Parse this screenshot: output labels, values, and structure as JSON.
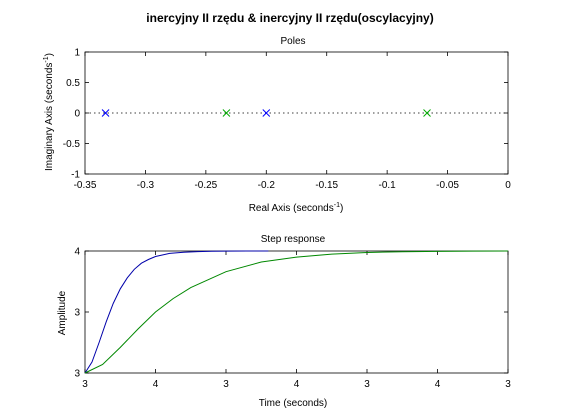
{
  "figure": {
    "title": "inercyjny II rzędu & inercyjny II rzędu(oscylacyjny)"
  },
  "chart_data": [
    {
      "type": "scatter",
      "title": "Poles",
      "xlabel_main": "Real Axis (seconds",
      "xlabel_exp": "-1",
      "xlabel_close": ")",
      "ylabel_main": "Imaginary Axis (seconds",
      "ylabel_exp": "-1",
      "ylabel_close": ")",
      "xlim": [
        -0.35,
        0
      ],
      "ylim": [
        -1,
        1
      ],
      "xticks": [
        "-0.35",
        "-0.3",
        "-0.25",
        "-0.2",
        "-0.15",
        "-0.1",
        "-0.05",
        "0"
      ],
      "yticks": [
        "-1",
        "-0.5",
        "0",
        "0.5",
        "1"
      ],
      "series": [
        {
          "color": "#0000ff",
          "x": [
            -0.333,
            -0.2
          ],
          "y": [
            0,
            0
          ]
        },
        {
          "color": "#00aa00",
          "x": [
            -0.233,
            -0.067
          ],
          "y": [
            0,
            0
          ]
        }
      ]
    },
    {
      "type": "line",
      "title": "Step response",
      "xlabel": "Time (seconds)",
      "ylabel": "Amplitude",
      "xlim": [
        0,
        6
      ],
      "ylim": [
        0,
        1
      ],
      "xticks": [
        "3",
        "4",
        "3",
        "4",
        "3",
        "4",
        "3"
      ],
      "yticks": [
        "3",
        "3",
        "4"
      ],
      "series": [
        {
          "color": "#0000aa",
          "x": [
            0,
            0.1,
            0.2,
            0.3,
            0.4,
            0.5,
            0.6,
            0.7,
            0.8,
            0.9,
            1.0,
            1.2,
            1.4,
            1.6,
            1.8,
            2.0,
            2.3,
            2.6
          ],
          "y": [
            0,
            0.09,
            0.25,
            0.42,
            0.57,
            0.69,
            0.78,
            0.85,
            0.9,
            0.93,
            0.955,
            0.98,
            0.99,
            0.995,
            0.998,
            0.999,
            1.0,
            1.0
          ]
        },
        {
          "color": "#008800",
          "x": [
            0,
            0.25,
            0.5,
            0.75,
            1.0,
            1.25,
            1.5,
            2.0,
            2.5,
            3.0,
            3.5,
            4.0,
            4.5,
            5.0,
            5.5,
            6.0
          ],
          "y": [
            0,
            0.07,
            0.21,
            0.36,
            0.5,
            0.61,
            0.7,
            0.83,
            0.91,
            0.95,
            0.975,
            0.988,
            0.994,
            0.997,
            0.999,
            1.0
          ]
        }
      ]
    }
  ]
}
